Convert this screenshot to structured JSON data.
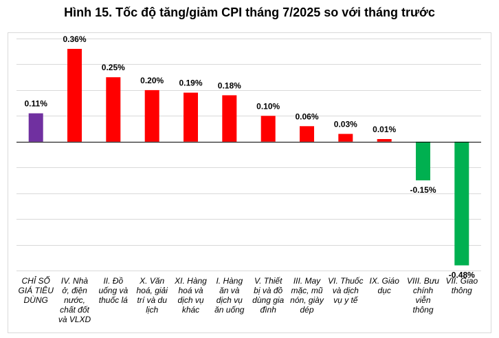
{
  "chart_data": {
    "type": "bar",
    "title": "Hình 15. Tốc độ tăng/giảm CPI tháng 7/2025 so với tháng trước",
    "xlabel": "",
    "ylabel": "",
    "ylim": [
      -0.5,
      0.4
    ],
    "grid": true,
    "categories": [
      [
        "CHỈ SỐ",
        "GIÁ TIÊU",
        "DÙNG"
      ],
      [
        "IV. Nhà",
        "ở, điện",
        "nước,",
        "chất đốt",
        "và VLXD"
      ],
      [
        "II. Đồ",
        "uống và",
        "thuốc lá"
      ],
      [
        "X. Văn",
        "hoá, giải",
        "trí và du",
        "lịch"
      ],
      [
        "XI. Hàng",
        "hoá và",
        "dịch vụ",
        "khác"
      ],
      [
        "I. Hàng",
        "ăn và",
        "dịch vụ",
        "ăn uống"
      ],
      [
        "V. Thiết",
        "bị và đồ",
        "dùng gia",
        "đình"
      ],
      [
        "III. May",
        "mặc, mũ",
        "nón, giày",
        "dép"
      ],
      [
        "VI. Thuốc",
        "và dịch",
        "vụ y tế"
      ],
      [
        "IX. Giáo",
        "dục"
      ],
      [
        "VIII. Bưu",
        "chính",
        "viễn",
        "thông"
      ],
      [
        "VII. Giao",
        "thông"
      ]
    ],
    "values": [
      0.11,
      0.36,
      0.25,
      0.2,
      0.19,
      0.18,
      0.1,
      0.06,
      0.03,
      0.01,
      -0.15,
      -0.48
    ],
    "labels": [
      "0.11%",
      "0.36%",
      "0.25%",
      "0.20%",
      "0.19%",
      "0.18%",
      "0.10%",
      "0.06%",
      "0.03%",
      "0.01%",
      "-0.15%",
      "-0.48%"
    ],
    "colors": {
      "overall": "#7030a0",
      "positive": "#ff0000",
      "negative": "#00b050",
      "grid": "#d9d9d9",
      "axis": "#000000"
    }
  }
}
